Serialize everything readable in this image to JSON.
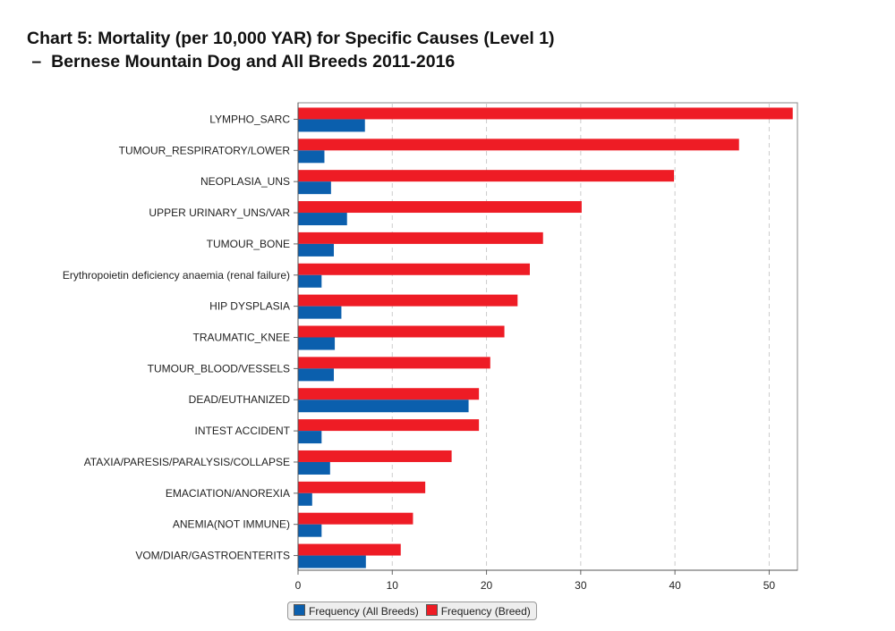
{
  "chart_data": {
    "type": "bar",
    "orientation": "horizontal",
    "title_line1": "Chart 5: Mortality (per 10,000 YAR) for Specific Causes (Level 1)",
    "title_line2": " –  Bernese Mountain Dog and All Breeds 2011-2016",
    "categories": [
      "LYMPHO_SARC",
      "TUMOUR_RESPIRATORY/LOWER",
      "NEOPLASIA_UNS",
      "UPPER URINARY_UNS/VAR",
      "TUMOUR_BONE",
      "Erythropoietin deficiency anaemia (renal failure)",
      "HIP DYSPLASIA",
      "TRAUMATIC_KNEE",
      "TUMOUR_BLOOD/VESSELS",
      "DEAD/EUTHANIZED",
      "INTEST ACCIDENT",
      "ATAXIA/PARESIS/PARALYSIS/COLLAPSE",
      "EMACIATION/ANOREXIA",
      "ANEMIA(NOT IMMUNE)",
      "VOM/DIAR/GASTROENTERITS"
    ],
    "series": [
      {
        "name": "Frequency (Breed)",
        "color": "#ee1c25",
        "values": [
          52.5,
          46.8,
          39.9,
          30.1,
          26.0,
          24.6,
          23.3,
          21.9,
          20.4,
          19.2,
          19.2,
          16.3,
          13.5,
          12.2,
          10.9
        ]
      },
      {
        "name": "Frequency (All Breeds)",
        "color": "#0b5fad",
        "values": [
          7.1,
          2.8,
          3.5,
          5.2,
          3.8,
          2.5,
          4.6,
          3.9,
          3.8,
          18.1,
          2.5,
          3.4,
          1.5,
          2.5,
          7.2
        ]
      }
    ],
    "legend_order": [
      "Frequency (All Breeds)",
      "Frequency (Breed)"
    ],
    "xticks": [
      0,
      10,
      20,
      30,
      40,
      50
    ],
    "xlim": [
      0,
      53
    ],
    "grid": "vertical dashed",
    "legend_placement": "bottom-left"
  }
}
